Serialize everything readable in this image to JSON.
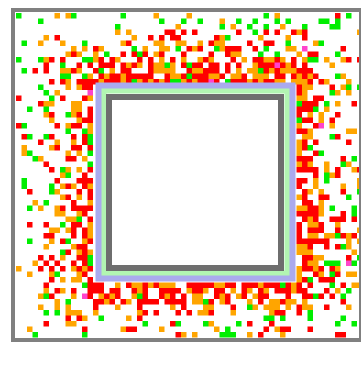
{
  "board": {
    "background": "#ffffff",
    "outer_frame_color": "#808080",
    "inner_wall_color": "#6e6e6e",
    "mint_band_color": "#b2f5b2",
    "lavender_band_color": "#aaaaee",
    "cell_colors": [
      "#ff0000",
      "#ffa500",
      "#00ee00",
      "#ff44cc"
    ],
    "cell_color_names": [
      "red",
      "orange",
      "green",
      "magenta"
    ]
  }
}
